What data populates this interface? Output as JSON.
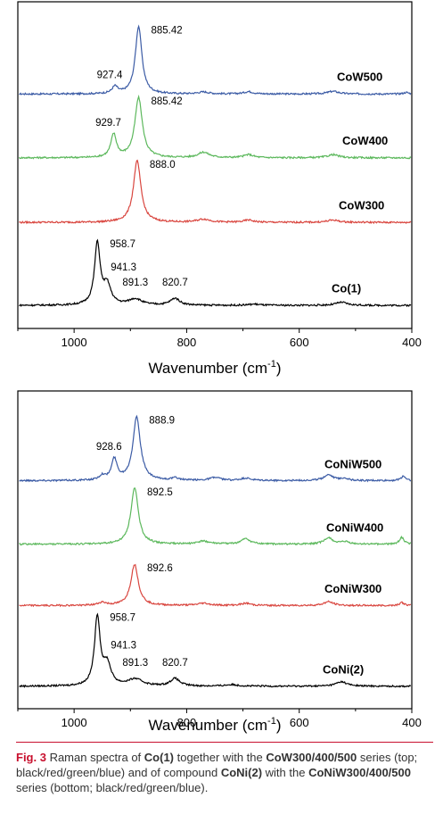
{
  "chart_data": [
    {
      "type": "line",
      "title": "",
      "xlabel": "Wavenumber (cm",
      "xlabel_sup": "-1",
      "xlabel_end": ")",
      "ylabel": "",
      "xlim": [
        1100,
        400
      ],
      "xticks": [
        1000,
        800,
        600,
        400
      ],
      "grid": false,
      "series": [
        {
          "name": "CoW500",
          "color": "#3b5ba5",
          "offset": 3.05,
          "peaks": [
            {
              "x": 885.42,
              "h": 0.88,
              "w": 7,
              "label": "885.42"
            },
            {
              "x": 927.4,
              "h": 0.09,
              "w": 6,
              "label": "927.4"
            },
            {
              "x": 770,
              "h": 0.025,
              "w": 12
            },
            {
              "x": 690,
              "h": 0.03,
              "w": 10
            },
            {
              "x": 540,
              "h": 0.035,
              "w": 12
            },
            {
              "x": 410,
              "h": 0.02,
              "w": 6
            }
          ]
        },
        {
          "name": "CoW400",
          "color": "#5cb85c",
          "offset": 2.22,
          "peaks": [
            {
              "x": 885.42,
              "h": 0.78,
              "w": 8,
              "label": "885.42"
            },
            {
              "x": 929.7,
              "h": 0.3,
              "w": 6,
              "label": "929.7"
            },
            {
              "x": 770,
              "h": 0.07,
              "w": 12
            },
            {
              "x": 690,
              "h": 0.04,
              "w": 10
            },
            {
              "x": 540,
              "h": 0.04,
              "w": 12
            }
          ]
        },
        {
          "name": "CoW300",
          "color": "#d9463f",
          "offset": 1.38,
          "peaks": [
            {
              "x": 888.0,
              "h": 0.8,
              "w": 8,
              "label": "888.0"
            },
            {
              "x": 770,
              "h": 0.04,
              "w": 14
            },
            {
              "x": 690,
              "h": 0.03,
              "w": 10
            },
            {
              "x": 540,
              "h": 0.03,
              "w": 12
            }
          ]
        },
        {
          "name": "Co(1)",
          "color": "#000000",
          "offset": 0.3,
          "peaks": [
            {
              "x": 958.7,
              "h": 0.8,
              "w": 6,
              "label": "958.7"
            },
            {
              "x": 941.3,
              "h": 0.25,
              "w": 8,
              "label": "941.3"
            },
            {
              "x": 891.3,
              "h": 0.08,
              "w": 14,
              "label": "891.3"
            },
            {
              "x": 820.7,
              "h": 0.09,
              "w": 10,
              "label": "820.7"
            },
            {
              "x": 680,
              "h": 0.015,
              "w": 12
            },
            {
              "x": 525,
              "h": 0.04,
              "w": 12
            }
          ]
        }
      ]
    },
    {
      "type": "line",
      "title": "",
      "xlabel": "Wavenumber (cm",
      "xlabel_sup": "-1",
      "xlabel_end": ")",
      "ylabel": "",
      "xlim": [
        1100,
        400
      ],
      "xticks": [
        1000,
        800,
        600,
        400
      ],
      "grid": false,
      "series": [
        {
          "name": "CoNiW500",
          "color": "#3b5ba5",
          "offset": 3.05,
          "peaks": [
            {
              "x": 888.9,
              "h": 0.85,
              "w": 8,
              "label": "888.9"
            },
            {
              "x": 928.6,
              "h": 0.28,
              "w": 6,
              "label": "928.6"
            },
            {
              "x": 950,
              "h": 0.06,
              "w": 6
            },
            {
              "x": 820,
              "h": 0.03,
              "w": 8
            },
            {
              "x": 750,
              "h": 0.04,
              "w": 12
            },
            {
              "x": 695,
              "h": 0.03,
              "w": 10
            },
            {
              "x": 548,
              "h": 0.08,
              "w": 10
            },
            {
              "x": 520,
              "h": 0.03,
              "w": 8
            },
            {
              "x": 415,
              "h": 0.06,
              "w": 5
            }
          ]
        },
        {
          "name": "CoNiW400",
          "color": "#5cb85c",
          "offset": 2.2,
          "peaks": [
            {
              "x": 892.5,
              "h": 0.75,
              "w": 8,
              "label": "892.5"
            },
            {
              "x": 770,
              "h": 0.04,
              "w": 12
            },
            {
              "x": 695,
              "h": 0.07,
              "w": 10
            },
            {
              "x": 548,
              "h": 0.08,
              "w": 10
            },
            {
              "x": 518,
              "h": 0.03,
              "w": 8
            },
            {
              "x": 418,
              "h": 0.09,
              "w": 5
            }
          ]
        },
        {
          "name": "CoNiW300",
          "color": "#d9463f",
          "offset": 1.38,
          "peaks": [
            {
              "x": 892.6,
              "h": 0.55,
              "w": 8,
              "label": "892.6"
            },
            {
              "x": 950,
              "h": 0.04,
              "w": 8
            },
            {
              "x": 770,
              "h": 0.03,
              "w": 12
            },
            {
              "x": 695,
              "h": 0.03,
              "w": 10
            },
            {
              "x": 548,
              "h": 0.05,
              "w": 10
            },
            {
              "x": 418,
              "h": 0.04,
              "w": 5
            }
          ]
        },
        {
          "name": "CoNi(2)",
          "color": "#000000",
          "offset": 0.3,
          "peaks": [
            {
              "x": 958.7,
              "h": 0.92,
              "w": 6,
              "label": "958.7"
            },
            {
              "x": 941.3,
              "h": 0.28,
              "w": 8,
              "label": "941.3"
            },
            {
              "x": 891.3,
              "h": 0.09,
              "w": 16,
              "label": "891.3"
            },
            {
              "x": 820.7,
              "h": 0.1,
              "w": 10,
              "label": "820.7"
            },
            {
              "x": 720,
              "h": 0.02,
              "w": 14
            },
            {
              "x": 525,
              "h": 0.06,
              "w": 12
            }
          ]
        }
      ]
    }
  ],
  "caption": {
    "label": "Fig. 3",
    "text_1": "  Raman spectra of ",
    "bold_1": "Co(1)",
    "text_2": " together with the ",
    "bold_2": "CoW300/400/500",
    "text_3": " series (top; black/red/green/blue) and of compound ",
    "bold_3": "CoNi(2)",
    "text_4": " with the ",
    "bold_4": "CoNiW300/400/500",
    "text_5": " series (bottom; black/red/green/blue)."
  }
}
